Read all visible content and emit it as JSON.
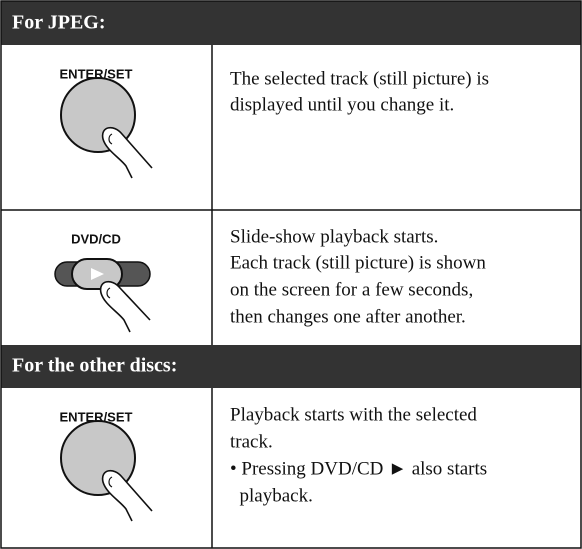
{
  "sections": [
    {
      "title": "For JPEG:",
      "rows": [
        {
          "button": "ENTER/SET",
          "lines": [
            "The selected track (still picture) is",
            "displayed until you change it."
          ]
        },
        {
          "button": "DVD/CD",
          "lines": [
            "Slide-show playback starts.",
            "Each track (still picture) is shown",
            "on the screen for a few seconds,",
            "then changes one after another."
          ]
        }
      ]
    },
    {
      "title": "For the other discs:",
      "rows": [
        {
          "button": "ENTER/SET",
          "lines": [
            "Playback starts with the selected",
            "track.",
            "• Pressing DVD/CD ► also starts",
            "  playback."
          ]
        }
      ]
    }
  ]
}
